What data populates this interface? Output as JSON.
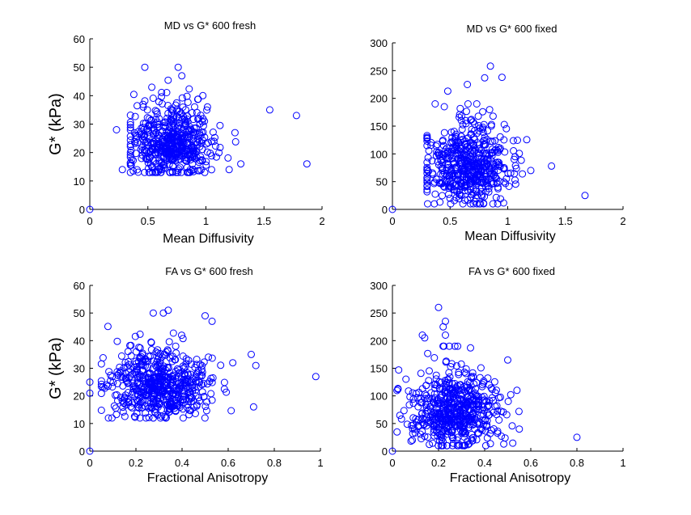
{
  "colors": {
    "marker": "#0000ff",
    "axis": "#000000",
    "background": "#ffffff"
  },
  "chart_data": [
    {
      "type": "scatter",
      "title": "MD vs G* 600 fresh",
      "xlabel": "Mean Diffusivity",
      "ylabel": "G* (kPa)",
      "xlim": [
        0,
        2
      ],
      "ylim": [
        0,
        60
      ],
      "xticks": [
        "0",
        "0.5",
        "1",
        "1.5",
        "2"
      ],
      "yticks": [
        "0",
        "10",
        "20",
        "30",
        "40",
        "50",
        "60"
      ],
      "outliers": [
        [
          0,
          0
        ],
        [
          0.23,
          28
        ],
        [
          0.28,
          14
        ],
        [
          1.55,
          35
        ],
        [
          1.78,
          33
        ],
        [
          1.87,
          16
        ],
        [
          1.25,
          27
        ],
        [
          1.2,
          14
        ],
        [
          1.3,
          16
        ]
      ],
      "cluster": {
        "seed": 11,
        "count": 520,
        "x": [
          0.7,
          0.18,
          0.35,
          1.3
        ],
        "y": [
          23,
          6,
          13,
          50
        ]
      }
    },
    {
      "type": "scatter",
      "title": "MD vs G* 600 fixed",
      "xlabel": "Mean Diffusivity",
      "ylabel": "",
      "xlim": [
        0,
        2
      ],
      "ylim": [
        0,
        300
      ],
      "xticks": [
        "0",
        "0.5",
        "1",
        "1.5",
        "2"
      ],
      "yticks": [
        "0",
        "50",
        "100",
        "150",
        "200",
        "250",
        "300"
      ],
      "outliers": [
        [
          0,
          0
        ],
        [
          0.85,
          258
        ],
        [
          0.95,
          238
        ],
        [
          0.8,
          237
        ],
        [
          0.48,
          213
        ],
        [
          0.45,
          185
        ],
        [
          0.65,
          225
        ],
        [
          1.67,
          25
        ],
        [
          1.38,
          78
        ],
        [
          1.2,
          70
        ]
      ],
      "cluster": {
        "seed": 23,
        "count": 520,
        "x": [
          0.65,
          0.18,
          0.3,
          1.3
        ],
        "y": [
          75,
          33,
          10,
          190
        ]
      }
    },
    {
      "type": "scatter",
      "title": "FA vs G* 600 fresh",
      "xlabel": "Fractional Anisotropy",
      "ylabel": "G* (kPa)",
      "xlim": [
        0,
        1
      ],
      "ylim": [
        0,
        60
      ],
      "xticks": [
        "0",
        "0.2",
        "0.4",
        "0.6",
        "0.8",
        "1"
      ],
      "yticks": [
        "0",
        "10",
        "20",
        "30",
        "40",
        "50",
        "60"
      ],
      "outliers": [
        [
          0,
          0
        ],
        [
          0.0,
          25
        ],
        [
          0.0,
          21
        ],
        [
          0.98,
          27
        ],
        [
          0.7,
          35
        ],
        [
          0.71,
          16
        ],
        [
          0.72,
          31
        ],
        [
          0.62,
          32
        ],
        [
          0.53,
          47
        ],
        [
          0.5,
          49
        ],
        [
          0.34,
          51
        ]
      ],
      "cluster": {
        "seed": 37,
        "count": 560,
        "x": [
          0.3,
          0.11,
          0.05,
          0.68
        ],
        "y": [
          23,
          6,
          12,
          50
        ]
      }
    },
    {
      "type": "scatter",
      "title": "FA vs G* 600 fixed",
      "xlabel": "Fractional Anisotropy",
      "ylabel": "",
      "xlim": [
        0,
        1
      ],
      "ylim": [
        0,
        300
      ],
      "xticks": [
        "0",
        "0.2",
        "0.4",
        "0.6",
        "0.8",
        "1"
      ],
      "yticks": [
        "0",
        "50",
        "100",
        "150",
        "200",
        "250",
        "300"
      ],
      "outliers": [
        [
          0,
          0
        ],
        [
          0.8,
          25
        ],
        [
          0.2,
          260
        ],
        [
          0.23,
          235
        ],
        [
          0.22,
          225
        ],
        [
          0.23,
          210
        ],
        [
          0.13,
          210
        ],
        [
          0.14,
          205
        ],
        [
          0.55,
          40
        ],
        [
          0.54,
          110
        ],
        [
          0.5,
          165
        ]
      ],
      "cluster": {
        "seed": 53,
        "count": 560,
        "x": [
          0.27,
          0.1,
          0.02,
          0.56
        ],
        "y": [
          70,
          32,
          10,
          190
        ]
      }
    }
  ]
}
